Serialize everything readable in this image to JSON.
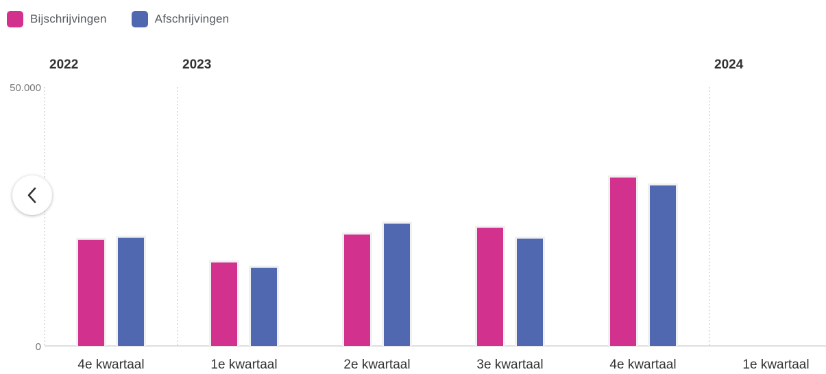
{
  "legend": [
    {
      "label": "Bijschrijvingen",
      "color": "#d3318e"
    },
    {
      "label": "Afschrijvingen",
      "color": "#5068b0"
    }
  ],
  "nav": {
    "prev_icon": "chevron-left-icon"
  },
  "chart_data": {
    "type": "bar",
    "categories": [
      "4e kwartaal",
      "1e kwartaal",
      "2e kwartaal",
      "3e kwartaal",
      "4e kwartaal",
      "1e kwartaal"
    ],
    "year_labels": [
      {
        "label": "2022",
        "at_category": 0
      },
      {
        "label": "2023",
        "at_category": 1
      },
      {
        "label": "2024",
        "at_category": 5
      }
    ],
    "series": [
      {
        "name": "Bijschrijvingen",
        "color": "#d3318e",
        "values": [
          20500,
          16100,
          21500,
          22800,
          32500,
          null
        ]
      },
      {
        "name": "Afschrijvingen",
        "color": "#5068b0",
        "values": [
          20900,
          15100,
          23600,
          20700,
          31000,
          null
        ]
      }
    ],
    "ylim": [
      0,
      50000
    ],
    "y_ticks": [
      {
        "value": 0,
        "label": "0"
      },
      {
        "value": 50000,
        "label": "50.000"
      }
    ],
    "grid": false,
    "legend_position": "top-left"
  }
}
